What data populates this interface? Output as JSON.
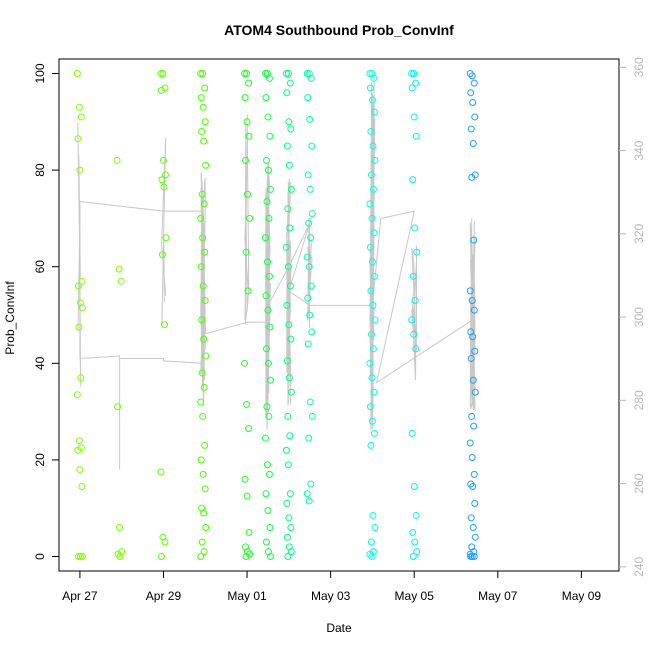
{
  "chart_data": {
    "type": "scatter",
    "title": "ATOM4 Southbound Prob_ConvInf",
    "xlabel": "Date",
    "ylabel": "Prob_ConvInf",
    "x_ticks": [
      "Apr 27",
      "Apr 29",
      "May 01",
      "May 03",
      "May 05",
      "May 07",
      "May 09"
    ],
    "y_ticks": [
      "0",
      "20",
      "40",
      "60",
      "80",
      "100"
    ],
    "y2_ticks": [
      "240",
      "260",
      "280",
      "300",
      "320",
      "340",
      "360"
    ],
    "xlim_days": [
      -0.5,
      12.9
    ],
    "ylim": [
      -3,
      103
    ],
    "y2lim": [
      239,
      362
    ],
    "grid": false,
    "series_points": {
      "description": "Prob_ConvInf values (0-100) per date cluster, colored by time",
      "clusters": [
        {
          "x": 0.0,
          "color": "#7fff00",
          "values": [
            100,
            93,
            91,
            86.5,
            80,
            57,
            56,
            52.5,
            51.5,
            47.5,
            37,
            33.5,
            24,
            22.5,
            22,
            18,
            14.5,
            0,
            0,
            0
          ]
        },
        {
          "x": 0.95,
          "color": "#77ff00",
          "values": [
            82,
            59.5,
            57,
            31,
            6,
            1,
            0.5,
            0
          ]
        },
        {
          "x": 2.0,
          "color": "#60ff00",
          "values": [
            100,
            100,
            97,
            96.5,
            82,
            79,
            78,
            76.5,
            66,
            62.5,
            48,
            17.5,
            4,
            3,
            0
          ]
        },
        {
          "x": 2.95,
          "color": "#4aff00",
          "values": [
            100,
            100,
            97,
            95,
            93,
            90,
            88,
            86,
            81,
            75,
            73,
            70,
            66,
            63,
            60,
            56,
            53,
            49,
            45,
            41.5,
            38,
            35,
            32,
            29,
            23,
            20,
            17,
            14,
            10,
            9,
            6,
            3,
            1,
            0
          ]
        },
        {
          "x": 4.0,
          "color": "#22ff22",
          "values": [
            100,
            100,
            98,
            95,
            90,
            87,
            82,
            75,
            70,
            63,
            55,
            40,
            31.5,
            26.5,
            16,
            12.5,
            5,
            2,
            1,
            0.5,
            0
          ]
        },
        {
          "x": 4.5,
          "color": "#10ff40",
          "values": [
            100,
            100,
            99,
            95,
            91,
            87,
            82,
            80,
            76,
            73.5,
            70,
            66,
            61,
            58,
            54,
            51,
            47.5,
            43,
            40,
            36.5,
            31,
            29,
            24.5,
            19,
            17,
            13,
            9.5,
            6,
            3,
            1,
            0
          ]
        },
        {
          "x": 5.0,
          "color": "#00ff80",
          "values": [
            100,
            100,
            98,
            96,
            90,
            88.5,
            85,
            81,
            76,
            72,
            68,
            64,
            60,
            56,
            52,
            48,
            45,
            40.5,
            37,
            34,
            29,
            25,
            22,
            19,
            13,
            11,
            8,
            6,
            4,
            2,
            1,
            0
          ]
        },
        {
          "x": 5.5,
          "color": "#00ffaa",
          "values": [
            100,
            100,
            99,
            95,
            90.5,
            85,
            79,
            76,
            71,
            69,
            66,
            62,
            60,
            56,
            53.5,
            50,
            46.5,
            44,
            32,
            29,
            24.5,
            15,
            13,
            11.5
          ]
        },
        {
          "x": 7.0,
          "color": "#00ffee",
          "values": [
            100,
            100,
            99,
            97,
            94.5,
            92,
            88,
            85,
            82,
            79,
            76,
            73,
            70,
            67,
            64,
            61,
            58,
            55,
            52,
            49,
            46,
            43,
            40,
            37,
            34,
            31,
            28,
            25.5,
            23,
            8.5,
            6,
            3,
            1,
            0.5,
            0
          ]
        },
        {
          "x": 8.0,
          "color": "#00f0ff",
          "values": [
            100,
            100,
            98,
            97,
            91,
            87,
            78,
            68,
            63,
            58,
            53,
            49,
            46,
            43,
            25.5,
            14.5,
            8.5,
            5,
            3,
            1,
            0
          ]
        },
        {
          "x": 9.4,
          "color": "#1ea0ff",
          "values": [
            100,
            99.5,
            98,
            96,
            94,
            91,
            88.5,
            85.5,
            79,
            78.5,
            65.5,
            55,
            53,
            51,
            46.5,
            45.5,
            42.5,
            41,
            36.5,
            34,
            29,
            27,
            23.5,
            20.5,
            17,
            15,
            14.5,
            11,
            8,
            6,
            4,
            2,
            1,
            0.5,
            0,
            0,
            0
          ]
        }
      ]
    }
  }
}
